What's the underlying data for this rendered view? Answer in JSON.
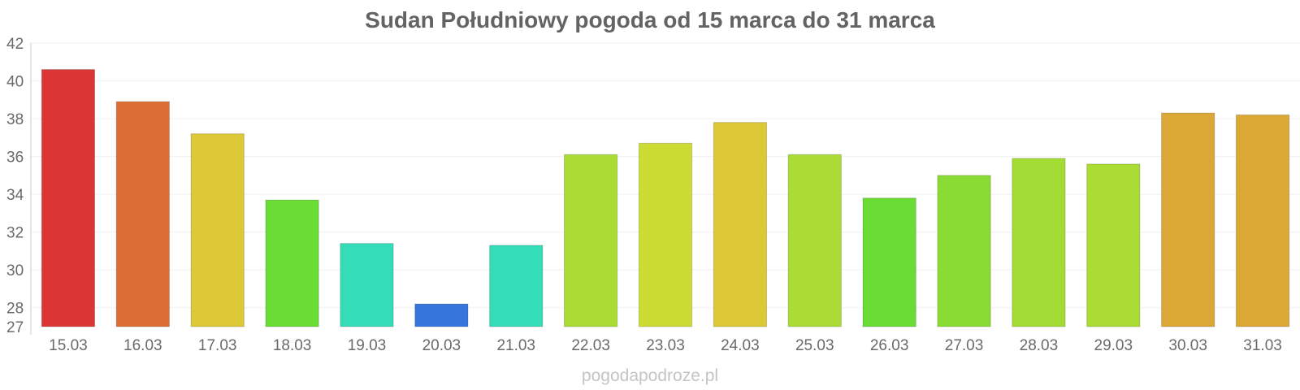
{
  "title": "Sudan Południowy pogoda od 15 marca do 31 marca",
  "watermark": "pogodapodroze.pl",
  "chart_data": {
    "type": "bar",
    "title": "Sudan Południowy pogoda od 15 marca do 31 marca",
    "xlabel": "",
    "ylabel": "",
    "ylim": [
      27,
      42
    ],
    "yticks": [
      27,
      28,
      30,
      32,
      34,
      36,
      38,
      40,
      42
    ],
    "grid": true,
    "categories": [
      "15.03",
      "16.03",
      "17.03",
      "18.03",
      "19.03",
      "20.03",
      "21.03",
      "22.03",
      "23.03",
      "24.03",
      "25.03",
      "26.03",
      "27.03",
      "28.03",
      "29.03",
      "30.03",
      "31.03"
    ],
    "values": [
      40.6,
      38.9,
      37.2,
      33.7,
      31.4,
      28.2,
      31.3,
      36.1,
      36.7,
      37.8,
      36.1,
      33.8,
      35.0,
      35.9,
      35.6,
      38.3,
      38.2
    ],
    "colors": [
      "#dc3535",
      "#dc6e35",
      "#dcc935",
      "#6adc35",
      "#35dcb8",
      "#3575dc",
      "#35dcb8",
      "#aadc35",
      "#ccdc35",
      "#dcc935",
      "#aadc35",
      "#6adc35",
      "#8adc35",
      "#a3dc35",
      "#aadc35",
      "#dca835",
      "#dca835"
    ]
  }
}
